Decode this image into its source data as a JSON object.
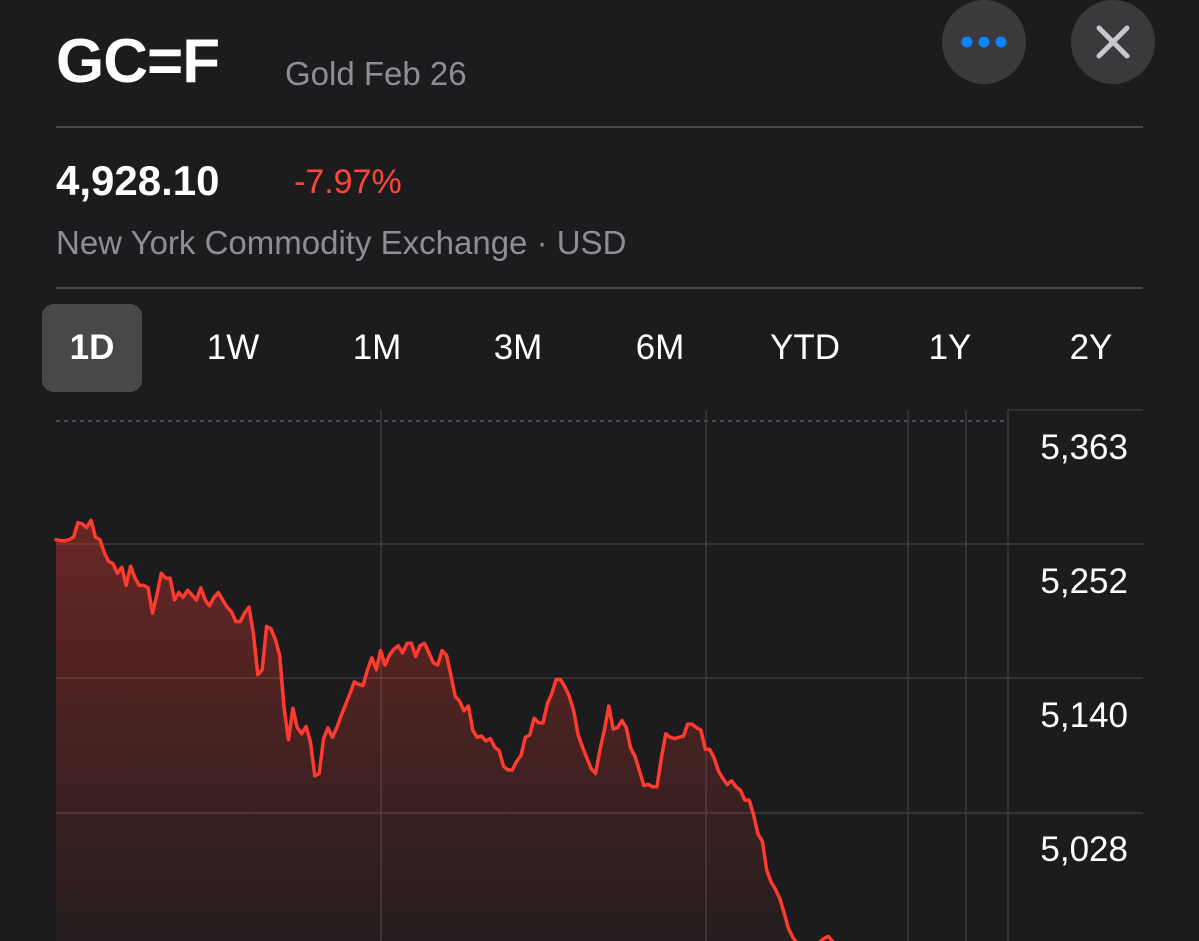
{
  "header": {
    "ticker": "GC=F",
    "name": "Gold Feb 26",
    "more_icon": "ellipsis-icon",
    "close_icon": "close-icon"
  },
  "quote": {
    "price": "4,928.10",
    "change": "-7.97%",
    "exchange_line": "New York Commodity Exchange · USD",
    "change_color": "#ff453a"
  },
  "ranges": [
    {
      "label": "1D",
      "active": true
    },
    {
      "label": "1W",
      "active": false
    },
    {
      "label": "1M",
      "active": false
    },
    {
      "label": "3M",
      "active": false
    },
    {
      "label": "6M",
      "active": false
    },
    {
      "label": "YTD",
      "active": false
    },
    {
      "label": "1Y",
      "active": false
    },
    {
      "label": "2Y",
      "active": false
    }
  ],
  "chart_data": {
    "type": "line",
    "title": "",
    "xlabel": "",
    "ylabel": "",
    "y_ticks": [
      "5,363",
      "5,252",
      "5,140",
      "5,028"
    ],
    "ylim": [
      4920,
      5380
    ],
    "grid": true,
    "line_color": "#ff3b30",
    "x": [
      0,
      1,
      2,
      3,
      4,
      5,
      6,
      7,
      8,
      9,
      10,
      11,
      12,
      13,
      14,
      15,
      16,
      17,
      18,
      19,
      20,
      21,
      22,
      23,
      24,
      25,
      26,
      27,
      28,
      29,
      30,
      31,
      32,
      33,
      34,
      35,
      36,
      37,
      38,
      39,
      40,
      41,
      42,
      43,
      44,
      45,
      46,
      47,
      48,
      49,
      50,
      51,
      52,
      53,
      54,
      55,
      56,
      57,
      58,
      59,
      60,
      61,
      62,
      63,
      64,
      65,
      66,
      67,
      68,
      69,
      70,
      71,
      72,
      73,
      74,
      75,
      76,
      77,
      78,
      79,
      80,
      81,
      82,
      83,
      84,
      85,
      86,
      87,
      88,
      89,
      90,
      91,
      92,
      93,
      94,
      95,
      96,
      97,
      98,
      99,
      100,
      101,
      102,
      103,
      104,
      105,
      106,
      107,
      108,
      109,
      110,
      111,
      112,
      113,
      114,
      115,
      116,
      117,
      118,
      119,
      120,
      121,
      122,
      123,
      124,
      125,
      126,
      127,
      128,
      129,
      130,
      131,
      132,
      133,
      134,
      135,
      136,
      137,
      138,
      139,
      140,
      141,
      142,
      143,
      144,
      145,
      146,
      147,
      148,
      149,
      150,
      151,
      152,
      153,
      154,
      155,
      156,
      157,
      158,
      159,
      160,
      161,
      162,
      163,
      164,
      165,
      166,
      167,
      168,
      169,
      170,
      171,
      172,
      173,
      174,
      175,
      176,
      177,
      178,
      179,
      180,
      181,
      182,
      183,
      184,
      185,
      186
    ],
    "values": [
      5268,
      5267,
      5267,
      5268,
      5270,
      5282,
      5281,
      5278,
      5284,
      5270,
      5268,
      5257,
      5250,
      5248,
      5240,
      5245,
      5230,
      5246,
      5236,
      5230,
      5230,
      5228,
      5207,
      5222,
      5240,
      5236,
      5236,
      5218,
      5224,
      5220,
      5226,
      5222,
      5218,
      5228,
      5218,
      5213,
      5220,
      5224,
      5218,
      5212,
      5208,
      5200,
      5200,
      5207,
      5212,
      5190,
      5156,
      5160,
      5196,
      5194,
      5185,
      5172,
      5128,
      5102,
      5128,
      5112,
      5107,
      5113,
      5100,
      5072,
      5074,
      5103,
      5112,
      5104,
      5112,
      5122,
      5131,
      5140,
      5150,
      5148,
      5147,
      5160,
      5170,
      5160,
      5176,
      5164,
      5172,
      5177,
      5180,
      5174,
      5182,
      5182,
      5171,
      5180,
      5182,
      5174,
      5166,
      5164,
      5176,
      5172,
      5156,
      5138,
      5134,
      5126,
      5130,
      5110,
      5104,
      5105,
      5101,
      5103,
      5096,
      5093,
      5080,
      5077,
      5077,
      5084,
      5089,
      5104,
      5106,
      5120,
      5116,
      5116,
      5132,
      5140,
      5152,
      5152,
      5146,
      5138,
      5126,
      5106,
      5096,
      5087,
      5078,
      5074,
      5094,
      5110,
      5130,
      5111,
      5112,
      5118,
      5112,
      5095,
      5088,
      5076,
      5064,
      5065,
      5063,
      5063,
      5087,
      5107,
      5104,
      5103,
      5104,
      5105,
      5115,
      5115,
      5112,
      5110,
      5094,
      5094,
      5087,
      5076,
      5070,
      5065,
      5068,
      5063,
      5060,
      5052,
      5052,
      5040,
      5024,
      5018,
      4994,
      4984,
      4978,
      4970,
      4958,
      4945,
      4938,
      4933,
      4926,
      4924,
      4924,
      4928,
      4934,
      4937,
      4939,
      4935,
      4929,
      4925,
      4923,
      4930,
      4928,
      4930,
      4928,
      4930,
      4929
    ]
  }
}
